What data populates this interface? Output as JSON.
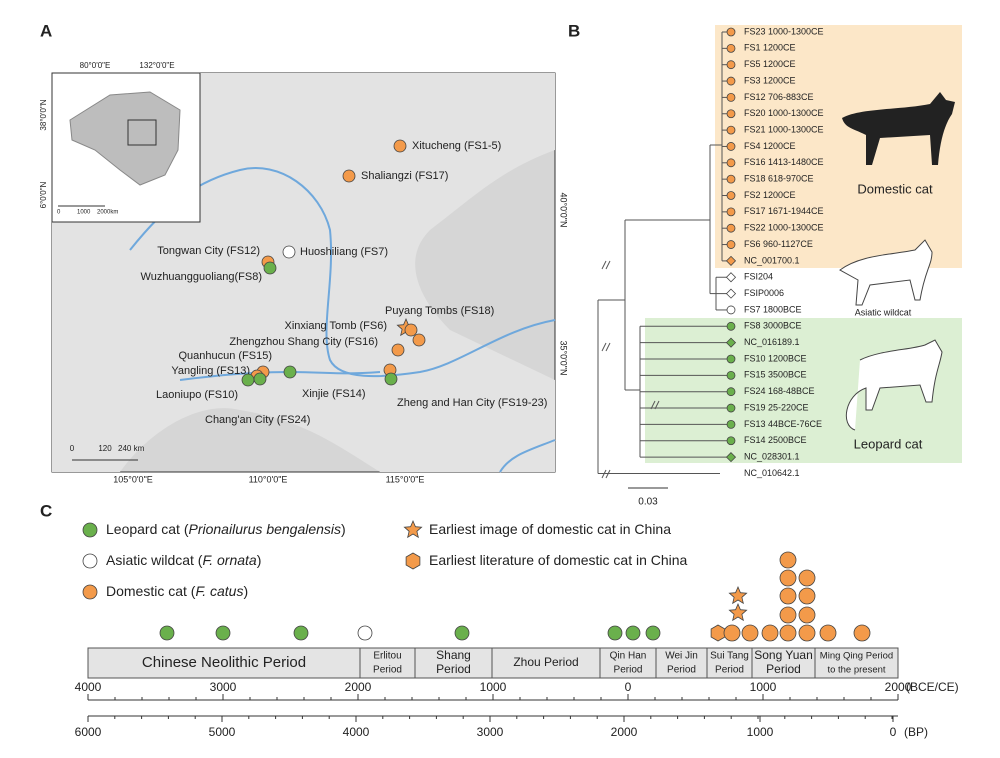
{
  "panel_a": {
    "label": "A",
    "inset": {
      "lon_labels": [
        "80°0'0\"E",
        "132°0'0\"E"
      ],
      "lat_labels": [
        "38°0'0\"N",
        "6°0'0\"N"
      ],
      "scale": [
        "0",
        "1000",
        "2000km"
      ]
    },
    "lon_labels": [
      "105°0'0\"E",
      "110°0'0\"E",
      "115°0'0\"E"
    ],
    "lat_labels": [
      "40°0'0\"N",
      "35°0'0\"N"
    ],
    "scale": [
      "0",
      "120",
      "240 km"
    ],
    "sites": [
      "Xitucheng (FS1-5)",
      "Shaliangzi (FS17)",
      "Tongwan City (FS12)",
      "Huoshiliang (FS7)",
      "Wuzhuangguoliang(FS8)",
      "Puyang Tombs (FS18)",
      "Xinxiang Tomb (FS6)",
      "Zhengzhou Shang City (FS16)",
      "Quanhucun (FS15)",
      "Yangling (FS13)",
      "Xinjie (FS14)",
      "Laoniupo (FS10)",
      "Chang'an City (FS24)",
      "Zheng and Han City (FS19-23)"
    ]
  },
  "panel_b": {
    "label": "B",
    "tips": [
      "FS23 1000-1300CE",
      "FS1 1200CE",
      "FS5 1200CE",
      "FS3 1200CE",
      "FS12 706-883CE",
      "FS20 1000-1300CE",
      "FS21 1000-1300CE",
      "FS4 1200CE",
      "FS16 1413-1480CE",
      "FS18 618-970CE",
      "FS2 1200CE",
      "FS17 1671-1944CE",
      "FS22 1000-1300CE",
      "FS6 960-1127CE",
      "NC_001700.1",
      "FSI204",
      "FSIP0006",
      "FS7 1800BCE",
      "FS8 3000BCE",
      "NC_016189.1",
      "FS10 1200BCE",
      "FS15 3500BCE",
      "FS24 168-48BCE",
      "FS19 25-220CE",
      "FS13 44BCE-76CE",
      "FS14 2500BCE",
      "NC_028301.1",
      "NC_010642.1"
    ],
    "clades": [
      "Domestic cat",
      "Asiatic wildcat",
      "Leopard cat"
    ],
    "scale": "0.03"
  },
  "panel_c": {
    "label": "C",
    "legend": [
      [
        "Leopard cat (",
        "Prionailurus bengalensis",
        ")"
      ],
      [
        "Asiatic wildcat (",
        "F. ornata",
        ")"
      ],
      [
        "Domestic cat (",
        "F. catus",
        ")"
      ],
      [
        "Earliest image of domestic cat in China"
      ],
      [
        "Earliest literature of domestic cat in China"
      ]
    ],
    "periods": [
      [
        "Chinese Neolithic Period"
      ],
      [
        "Erlitou",
        "Period"
      ],
      [
        "Shang",
        "Period"
      ],
      [
        "Zhou Period"
      ],
      [
        "Qin Han",
        "Period"
      ],
      [
        "Wei Jin",
        "Period"
      ],
      [
        "Sui Tang",
        "Period"
      ],
      [
        "Song Yuan",
        "Period"
      ],
      [
        "Ming Qing Period",
        "to the present"
      ]
    ],
    "top_axis": {
      "ticks": [
        "4000",
        "3000",
        "2000",
        "1000",
        "0",
        "1000",
        "2000"
      ],
      "unit": "(BCE/CE)"
    },
    "bottom_axis": {
      "ticks": [
        "6000",
        "5000",
        "4000",
        "3000",
        "2000",
        "1000",
        "0"
      ],
      "unit": "(BP)"
    }
  }
}
